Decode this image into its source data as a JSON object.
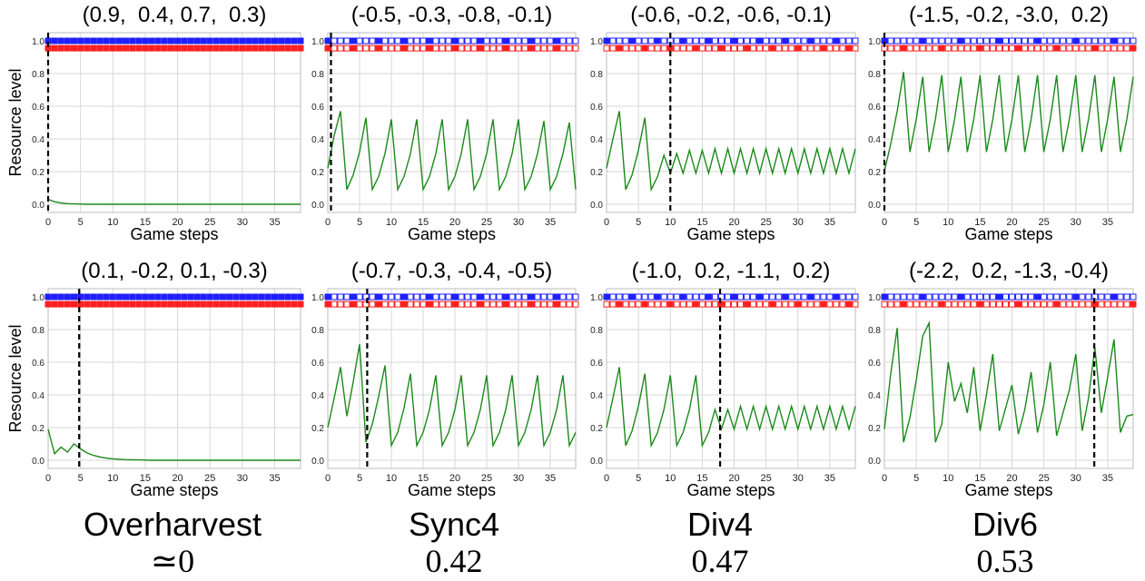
{
  "figure": {
    "axis_xlabel": "Game steps",
    "axis_ylabel": "Resource level",
    "xticks": [
      0,
      5,
      10,
      15,
      20,
      25,
      30,
      35
    ],
    "yticks": [
      "0.0",
      "0.2",
      "0.4",
      "0.6",
      "0.8",
      "1.0"
    ],
    "colors": {
      "line": "#1a8a1a",
      "agent1": "#1f1fff",
      "agent2": "#ff1f1f",
      "grid": "#d7d7d7",
      "marker": "#000000"
    }
  },
  "columns": [
    {
      "name": "Overharvest",
      "score": "≃0"
    },
    {
      "name": "Sync4",
      "score": "0.42"
    },
    {
      "name": "Div4",
      "score": "0.47"
    },
    {
      "name": "Div6",
      "score": "0.53"
    }
  ],
  "chart_data": [
    {
      "type": "line",
      "title": "(0.9,  0.4, 0.7,  0.3)",
      "xlabel": "Game steps",
      "ylabel": "Resource level",
      "xlim": [
        0,
        39
      ],
      "ylim": [
        -0.05,
        1.05
      ],
      "grid": true,
      "marker_step": 0,
      "plots_filled": "all",
      "series": [
        {
          "values": [
            0.03,
            0.015,
            0.008,
            0.004,
            0.002,
            0.001,
            0,
            0,
            0,
            0,
            0,
            0,
            0,
            0,
            0,
            0,
            0,
            0,
            0,
            0,
            0,
            0,
            0,
            0,
            0,
            0,
            0,
            0,
            0,
            0,
            0,
            0,
            0,
            0,
            0,
            0,
            0,
            0,
            0,
            0
          ]
        }
      ]
    },
    {
      "type": "line",
      "title": "(-0.5, -0.3, -0.8, -0.1)",
      "xlabel": "Game steps",
      "ylabel": "Resource level",
      "xlim": [
        0,
        39
      ],
      "ylim": [
        -0.05,
        1.05
      ],
      "grid": true,
      "marker_step": 0.5,
      "plots_filled": "sync4",
      "series": [
        {
          "values": [
            0.22,
            0.42,
            0.57,
            0.09,
            0.18,
            0.32,
            0.53,
            0.09,
            0.17,
            0.31,
            0.52,
            0.09,
            0.17,
            0.31,
            0.52,
            0.09,
            0.17,
            0.31,
            0.52,
            0.09,
            0.17,
            0.31,
            0.52,
            0.09,
            0.17,
            0.31,
            0.52,
            0.09,
            0.17,
            0.31,
            0.52,
            0.09,
            0.17,
            0.31,
            0.51,
            0.09,
            0.17,
            0.31,
            0.5,
            0.09
          ]
        }
      ]
    },
    {
      "type": "line",
      "title": "(-0.6, -0.2, -0.6, -0.1)",
      "xlabel": "Game steps",
      "ylabel": "Resource level",
      "xlim": [
        0,
        39
      ],
      "ylim": [
        -0.05,
        1.05
      ],
      "grid": true,
      "marker_step": 10,
      "plots_filled": "div4",
      "series": [
        {
          "values": [
            0.22,
            0.4,
            0.57,
            0.09,
            0.18,
            0.33,
            0.53,
            0.09,
            0.17,
            0.3,
            0.19,
            0.31,
            0.19,
            0.33,
            0.19,
            0.33,
            0.19,
            0.34,
            0.19,
            0.34,
            0.19,
            0.34,
            0.19,
            0.34,
            0.19,
            0.34,
            0.19,
            0.34,
            0.19,
            0.34,
            0.19,
            0.34,
            0.19,
            0.34,
            0.19,
            0.34,
            0.19,
            0.34,
            0.19,
            0.34
          ]
        }
      ]
    },
    {
      "type": "line",
      "title": "(-1.5, -0.2, -3.0,  0.2)",
      "xlabel": "Game steps",
      "ylabel": "Resource level",
      "xlim": [
        0,
        39
      ],
      "ylim": [
        -0.05,
        1.05
      ],
      "grid": true,
      "marker_step": 0,
      "plots_filled": "div6",
      "series": [
        {
          "values": [
            0.2,
            0.37,
            0.57,
            0.81,
            0.32,
            0.52,
            0.78,
            0.32,
            0.52,
            0.79,
            0.32,
            0.52,
            0.78,
            0.32,
            0.52,
            0.79,
            0.32,
            0.52,
            0.79,
            0.32,
            0.52,
            0.79,
            0.32,
            0.52,
            0.79,
            0.32,
            0.52,
            0.79,
            0.32,
            0.52,
            0.79,
            0.32,
            0.52,
            0.79,
            0.32,
            0.52,
            0.78,
            0.32,
            0.52,
            0.78
          ]
        }
      ]
    },
    {
      "type": "line",
      "title": "(0.1, -0.2, 0.1, -0.3)",
      "xlabel": "Game steps",
      "ylabel": "Resource level",
      "xlim": [
        0,
        39
      ],
      "ylim": [
        -0.05,
        1.05
      ],
      "grid": true,
      "marker_step": 4.8,
      "plots_filled": "all",
      "series": [
        {
          "values": [
            0.19,
            0.04,
            0.08,
            0.05,
            0.1,
            0.07,
            0.045,
            0.03,
            0.02,
            0.013,
            0.009,
            0.006,
            0.004,
            0.003,
            0.002,
            0.001,
            0,
            0,
            0,
            0,
            0,
            0,
            0,
            0,
            0,
            0,
            0,
            0,
            0,
            0,
            0,
            0,
            0,
            0,
            0,
            0,
            0,
            0,
            0,
            0
          ]
        }
      ]
    },
    {
      "type": "line",
      "title": "(-0.7, -0.3, -0.4, -0.5)",
      "xlabel": "Game steps",
      "ylabel": "Resource level",
      "xlim": [
        0,
        39
      ],
      "ylim": [
        -0.05,
        1.05
      ],
      "grid": true,
      "marker_step": 6.2,
      "plots_filled": "sync4",
      "series": [
        {
          "values": [
            0.2,
            0.38,
            0.57,
            0.27,
            0.48,
            0.71,
            0.11,
            0.22,
            0.39,
            0.58,
            0.09,
            0.17,
            0.32,
            0.53,
            0.09,
            0.17,
            0.31,
            0.52,
            0.09,
            0.17,
            0.31,
            0.52,
            0.09,
            0.17,
            0.31,
            0.52,
            0.09,
            0.17,
            0.31,
            0.52,
            0.09,
            0.17,
            0.31,
            0.52,
            0.09,
            0.17,
            0.31,
            0.52,
            0.09,
            0.17
          ]
        }
      ]
    },
    {
      "type": "line",
      "title": "(-1.0,  0.2, -1.1,  0.2)",
      "xlabel": "Game steps",
      "ylabel": "Resource level",
      "xlim": [
        0,
        39
      ],
      "ylim": [
        -0.05,
        1.05
      ],
      "grid": true,
      "marker_step": 17.8,
      "plots_filled": "div4",
      "series": [
        {
          "values": [
            0.2,
            0.38,
            0.57,
            0.09,
            0.18,
            0.33,
            0.53,
            0.09,
            0.17,
            0.31,
            0.52,
            0.09,
            0.17,
            0.31,
            0.52,
            0.09,
            0.17,
            0.31,
            0.19,
            0.31,
            0.19,
            0.33,
            0.19,
            0.33,
            0.19,
            0.33,
            0.19,
            0.33,
            0.19,
            0.33,
            0.19,
            0.33,
            0.19,
            0.33,
            0.19,
            0.33,
            0.19,
            0.33,
            0.19,
            0.33
          ]
        }
      ]
    },
    {
      "type": "line",
      "title": "(-2.2,  0.2, -1.3, -0.4)",
      "xlabel": "Game steps",
      "ylabel": "Resource level",
      "xlim": [
        0,
        39
      ],
      "ylim": [
        -0.05,
        1.05
      ],
      "grid": true,
      "marker_step": 32.9,
      "plots_filled": "div6",
      "series": [
        {
          "values": [
            0.19,
            0.53,
            0.81,
            0.11,
            0.26,
            0.49,
            0.76,
            0.84,
            0.11,
            0.22,
            0.6,
            0.36,
            0.47,
            0.29,
            0.57,
            0.18,
            0.4,
            0.65,
            0.18,
            0.32,
            0.46,
            0.16,
            0.31,
            0.54,
            0.17,
            0.34,
            0.6,
            0.15,
            0.29,
            0.43,
            0.65,
            0.18,
            0.38,
            0.69,
            0.29,
            0.51,
            0.74,
            0.17,
            0.27,
            0.28
          ]
        }
      ]
    }
  ]
}
